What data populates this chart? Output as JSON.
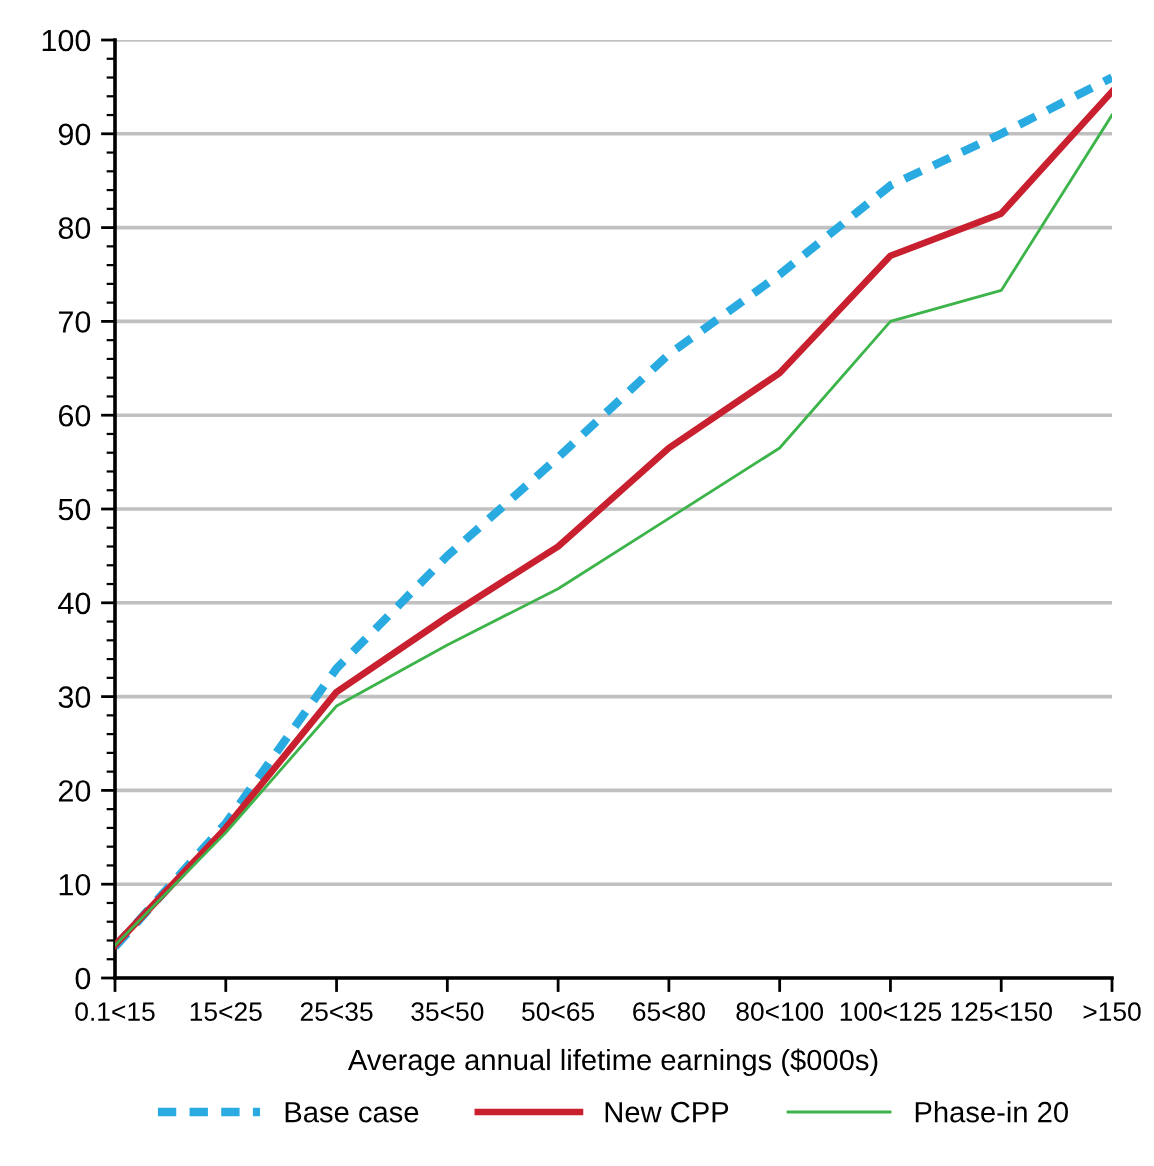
{
  "chart_data": {
    "type": "line",
    "xlabel": "Average annual lifetime earnings ($000s)",
    "categories": [
      "0.1<15",
      "15<25",
      "25<35",
      "35<50",
      "50<65",
      "65<80",
      "80<100",
      "100<125",
      "125<150",
      ">150"
    ],
    "series": [
      {
        "name": "Base case",
        "color": "#29abe2",
        "line_style": "dashed",
        "values": [
          3.3,
          16.5,
          33,
          45,
          55.5,
          66.5,
          75,
          84.5,
          90,
          96
        ]
      },
      {
        "name": "New CPP",
        "color": "#c8202f",
        "line_style": "solid",
        "values": [
          3.5,
          16,
          30.5,
          38.5,
          46,
          56.5,
          64.5,
          77,
          81.5,
          94.5
        ]
      },
      {
        "name": "Phase-in 20",
        "color": "#3cb44a",
        "line_style": "solid",
        "values": [
          3.5,
          15.5,
          29,
          35.5,
          41.5,
          49,
          56.5,
          70,
          73.3,
          92
        ]
      }
    ],
    "ylim": [
      0,
      100
    ],
    "yticks": [
      0,
      10,
      20,
      30,
      40,
      50,
      60,
      70,
      80,
      90,
      100
    ],
    "grid": "y",
    "legend": "bottom",
    "marker": "none"
  }
}
